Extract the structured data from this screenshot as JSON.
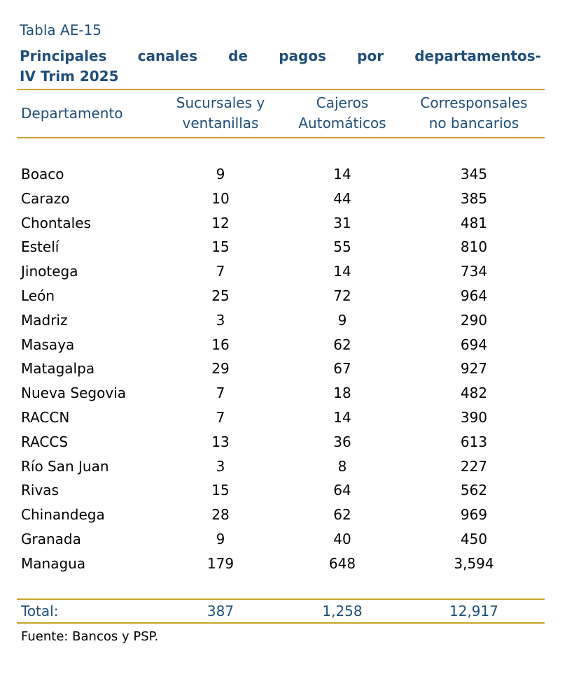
{
  "label": "Tabla AE-15",
  "title": [
    "Principales canales de pagos por departamentos-",
    "IV Trim 2025"
  ],
  "table": {
    "headers": [
      "Departamento",
      "Sucursales y\nventanillas",
      "Cajeros\nAutomáticos",
      "Corresponsales\nno bancarios"
    ],
    "rows": [
      [
        "Boaco",
        "9",
        "14",
        "345"
      ],
      [
        "Carazo",
        "10",
        "44",
        "385"
      ],
      [
        "Chontales",
        "12",
        "31",
        "481"
      ],
      [
        "Estelí",
        "15",
        "55",
        "810"
      ],
      [
        "Jinotega",
        "7",
        "14",
        "734"
      ],
      [
        "León",
        "25",
        "72",
        "964"
      ],
      [
        "Madriz",
        "3",
        "9",
        "290"
      ],
      [
        "Masaya",
        "16",
        "62",
        "694"
      ],
      [
        "Matagalpa",
        "29",
        "67",
        "927"
      ],
      [
        "Nueva Segovia",
        "7",
        "18",
        "482"
      ],
      [
        "RACCN",
        "7",
        "14",
        "390"
      ],
      [
        "RACCS",
        "13",
        "36",
        "613"
      ],
      [
        "Río San Juan",
        "3",
        "8",
        "227"
      ],
      [
        "Rivas",
        "15",
        "64",
        "562"
      ],
      [
        "Chinandega",
        "28",
        "62",
        "969"
      ],
      [
        "Granada",
        "9",
        "40",
        "450"
      ],
      [
        "Managua",
        "179",
        "648",
        "3,594"
      ]
    ],
    "total": [
      "Total:",
      "387",
      "1,258",
      "12,917"
    ]
  },
  "source": "Fuente: Bancos y PSP."
}
